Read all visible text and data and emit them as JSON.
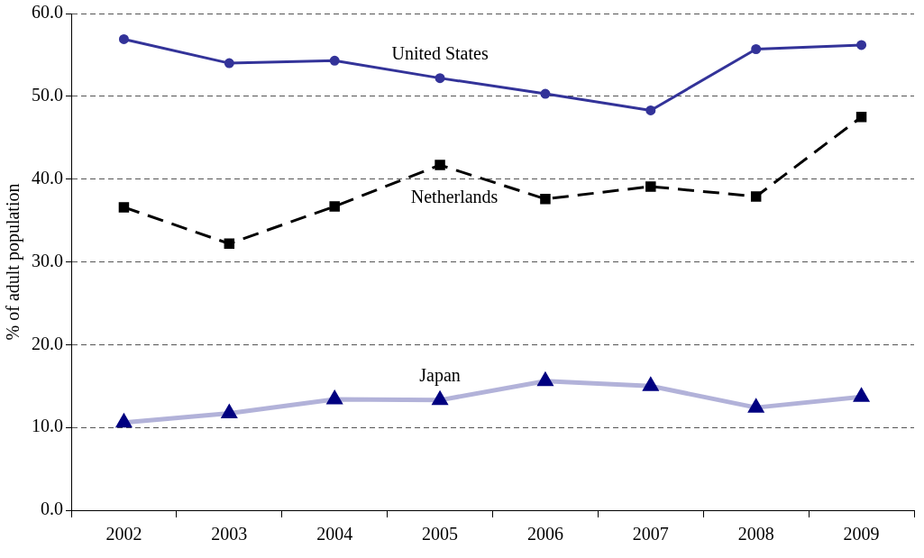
{
  "chart_data": {
    "type": "line",
    "ylabel": "% of adult population",
    "categories": [
      "2002",
      "2003",
      "2004",
      "2005",
      "2006",
      "2007",
      "2008",
      "2009"
    ],
    "series": [
      {
        "name": "United States",
        "color": "#333399",
        "marker": "circle",
        "line_style": "solid",
        "values": [
          56.9,
          54.0,
          54.3,
          52.2,
          50.3,
          48.3,
          55.7,
          56.2
        ]
      },
      {
        "name": "Netherlands",
        "color": "#000000",
        "marker": "square",
        "line_style": "dashed",
        "values": [
          36.6,
          32.2,
          36.7,
          41.7,
          37.6,
          39.1,
          37.9,
          47.5
        ]
      },
      {
        "name": "Japan",
        "color": "#000080",
        "marker": "triangle",
        "line_style": "solid",
        "values": [
          10.6,
          11.7,
          13.4,
          13.3,
          15.6,
          15.0,
          12.4,
          13.7
        ]
      }
    ],
    "ylim": [
      0,
      60
    ],
    "yticks": [
      {
        "value": 0,
        "label": "0.0"
      },
      {
        "value": 10,
        "label": "10.0"
      },
      {
        "value": 20,
        "label": "20.0"
      },
      {
        "value": 30,
        "label": "30.0"
      },
      {
        "value": 40,
        "label": "40.0"
      },
      {
        "value": 50,
        "label": "50.0"
      },
      {
        "value": 60,
        "label": "60.0"
      }
    ],
    "grid": "y",
    "legend": false
  }
}
